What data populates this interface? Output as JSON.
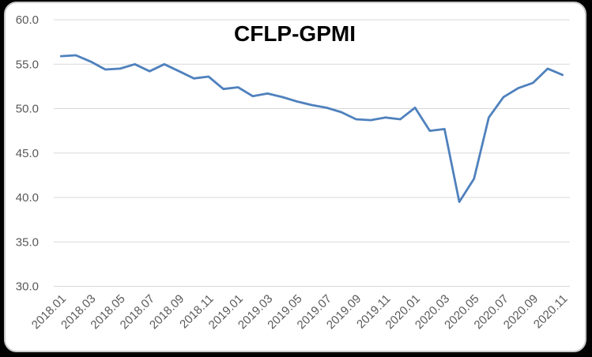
{
  "page": {
    "background_color": "#000000"
  },
  "card": {
    "background_color": "#ffffff",
    "border_color": "#c9c9c9"
  },
  "chart_data": {
    "type": "line",
    "title": "CFLP-GPMI",
    "series_name": "CFLP-GPMI",
    "categories": [
      "2018.01",
      "2018.02",
      "2018.03",
      "2018.04",
      "2018.05",
      "2018.06",
      "2018.07",
      "2018.08",
      "2018.09",
      "2018.10",
      "2018.11",
      "2018.12",
      "2019.01",
      "2019.02",
      "2019.03",
      "2019.04",
      "2019.05",
      "2019.06",
      "2019.07",
      "2019.08",
      "2019.09",
      "2019.10",
      "2019.11",
      "2019.12",
      "2020.01",
      "2020.02",
      "2020.03",
      "2020.04",
      "2020.05",
      "2020.06",
      "2020.07",
      "2020.08",
      "2020.09",
      "2020.10",
      "2020.11"
    ],
    "values": [
      55.9,
      56.0,
      55.3,
      54.4,
      54.5,
      55.0,
      54.2,
      55.0,
      54.2,
      53.4,
      53.6,
      52.2,
      52.4,
      51.4,
      51.7,
      51.3,
      50.8,
      50.4,
      50.1,
      49.6,
      48.8,
      48.7,
      49.0,
      48.8,
      50.1,
      47.5,
      47.7,
      39.5,
      42.1,
      49.0,
      51.3,
      52.3,
      52.9,
      54.5,
      53.8
    ],
    "ylim": [
      30,
      60
    ],
    "ytick_step": 5,
    "ytick_labels": [
      "60.0",
      "55.0",
      "50.0",
      "45.0",
      "40.0",
      "35.0",
      "30.0"
    ],
    "xtick_labels": [
      "2018.01",
      "2018.03",
      "2018.05",
      "2018.07",
      "2018.09",
      "2018.11",
      "2019.01",
      "2019.03",
      "2019.05",
      "2019.07",
      "2019.09",
      "2019.11",
      "2020.01",
      "2020.03",
      "2020.05",
      "2020.07",
      "2020.09",
      "2020.11"
    ],
    "xtick_every": 2,
    "grid": "horizontal",
    "legend": "none",
    "line_color": "#4F81BD",
    "gridline_color": "#D9D9D9",
    "axis_label_color": "#595959",
    "title_color": "#000000"
  }
}
